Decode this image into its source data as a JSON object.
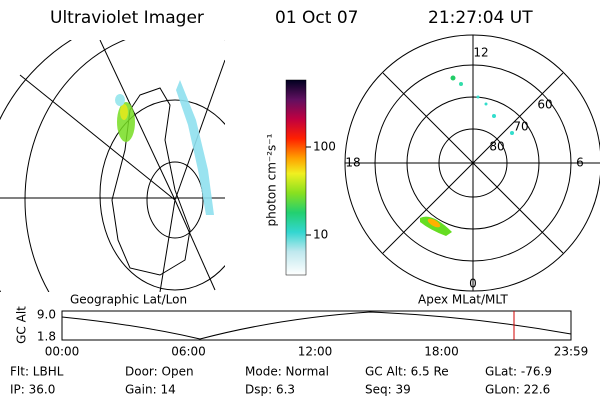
{
  "header": {
    "title": "Ultraviolet Imager",
    "date": "01 Oct 07",
    "time": "21:27:04 UT"
  },
  "left_map": {
    "label": "Geographic Lat/Lon"
  },
  "colorbar": {
    "label": "photon cm⁻²s⁻¹",
    "ticks": [
      "100",
      "10"
    ]
  },
  "polar_map": {
    "label": "Apex  MLat/MLT",
    "mlt": {
      "top": "12",
      "bottom": "0",
      "left": "18",
      "right": "6"
    },
    "rings": [
      "60",
      "70",
      "80"
    ]
  },
  "altitude_plot": {
    "axis_label": "GC Alt",
    "yticks": [
      "9.0",
      "1.8"
    ],
    "xticks": [
      "00:00",
      "06:00",
      "12:00",
      "18:00",
      "23:59"
    ]
  },
  "footer": {
    "rows": [
      [
        "Flt: LBHL",
        "Door: Open",
        "Mode: Normal",
        "GC Alt: 6.5 Re",
        "GLat: -76.9"
      ],
      [
        "IP: 36.0",
        "Gain: 14",
        "Dsp:    6.3",
        "Seq: 39",
        "GLon:  22.6"
      ]
    ]
  }
}
